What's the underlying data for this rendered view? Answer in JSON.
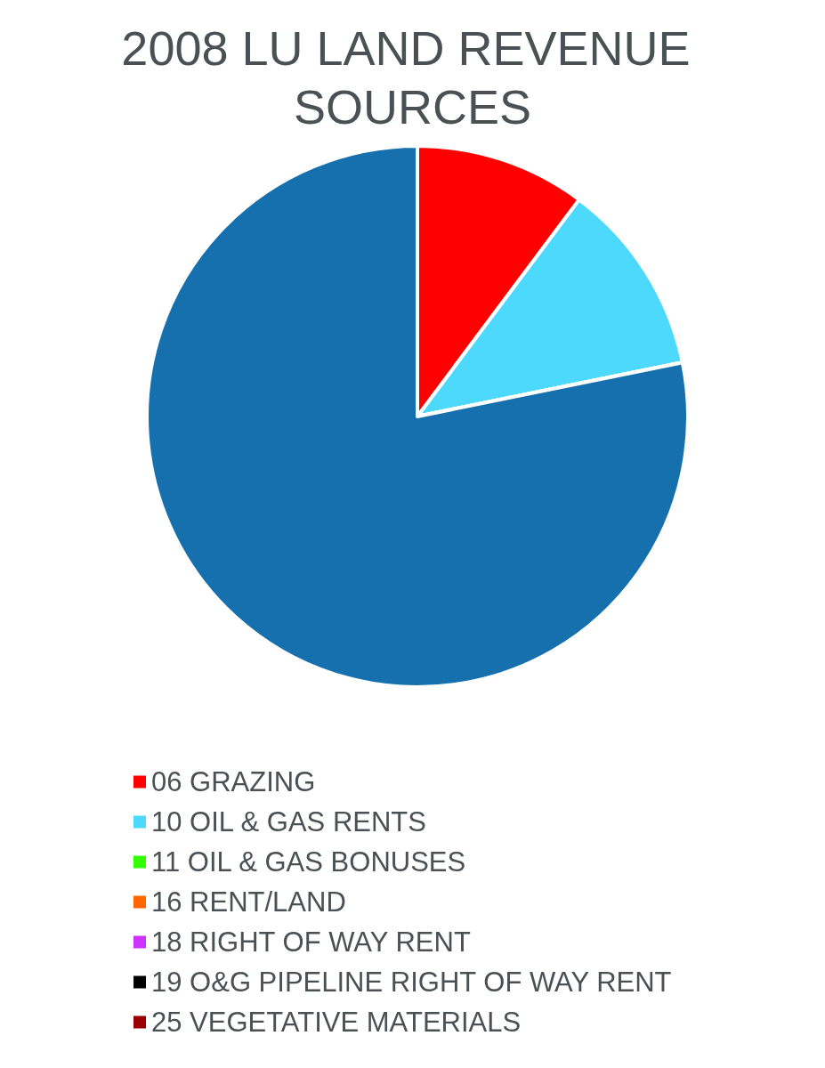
{
  "chart_data": {
    "type": "pie",
    "title": "2008 LU LAND REVENUE SOURCES",
    "categories": [
      "06 GRAZING",
      "10 OIL & GAS RENTS",
      "11 OIL & GAS BONUSES",
      "16 RENT/LAND",
      "18 RIGHT OF WAY RENT",
      "19 O&G PIPELINE RIGHT OF WAY RENT",
      "25 VEGETATIVE MATERIALS",
      null
    ],
    "values": [
      10.2,
      11.6,
      0,
      0,
      0,
      0,
      0,
      78.2
    ],
    "colors": [
      "#ff0000",
      "#4dd9fb",
      "#33ff00",
      "#ff6600",
      "#cc33ff",
      "#000000",
      "#990000",
      "#1570ad"
    ],
    "legend": "bottom"
  }
}
